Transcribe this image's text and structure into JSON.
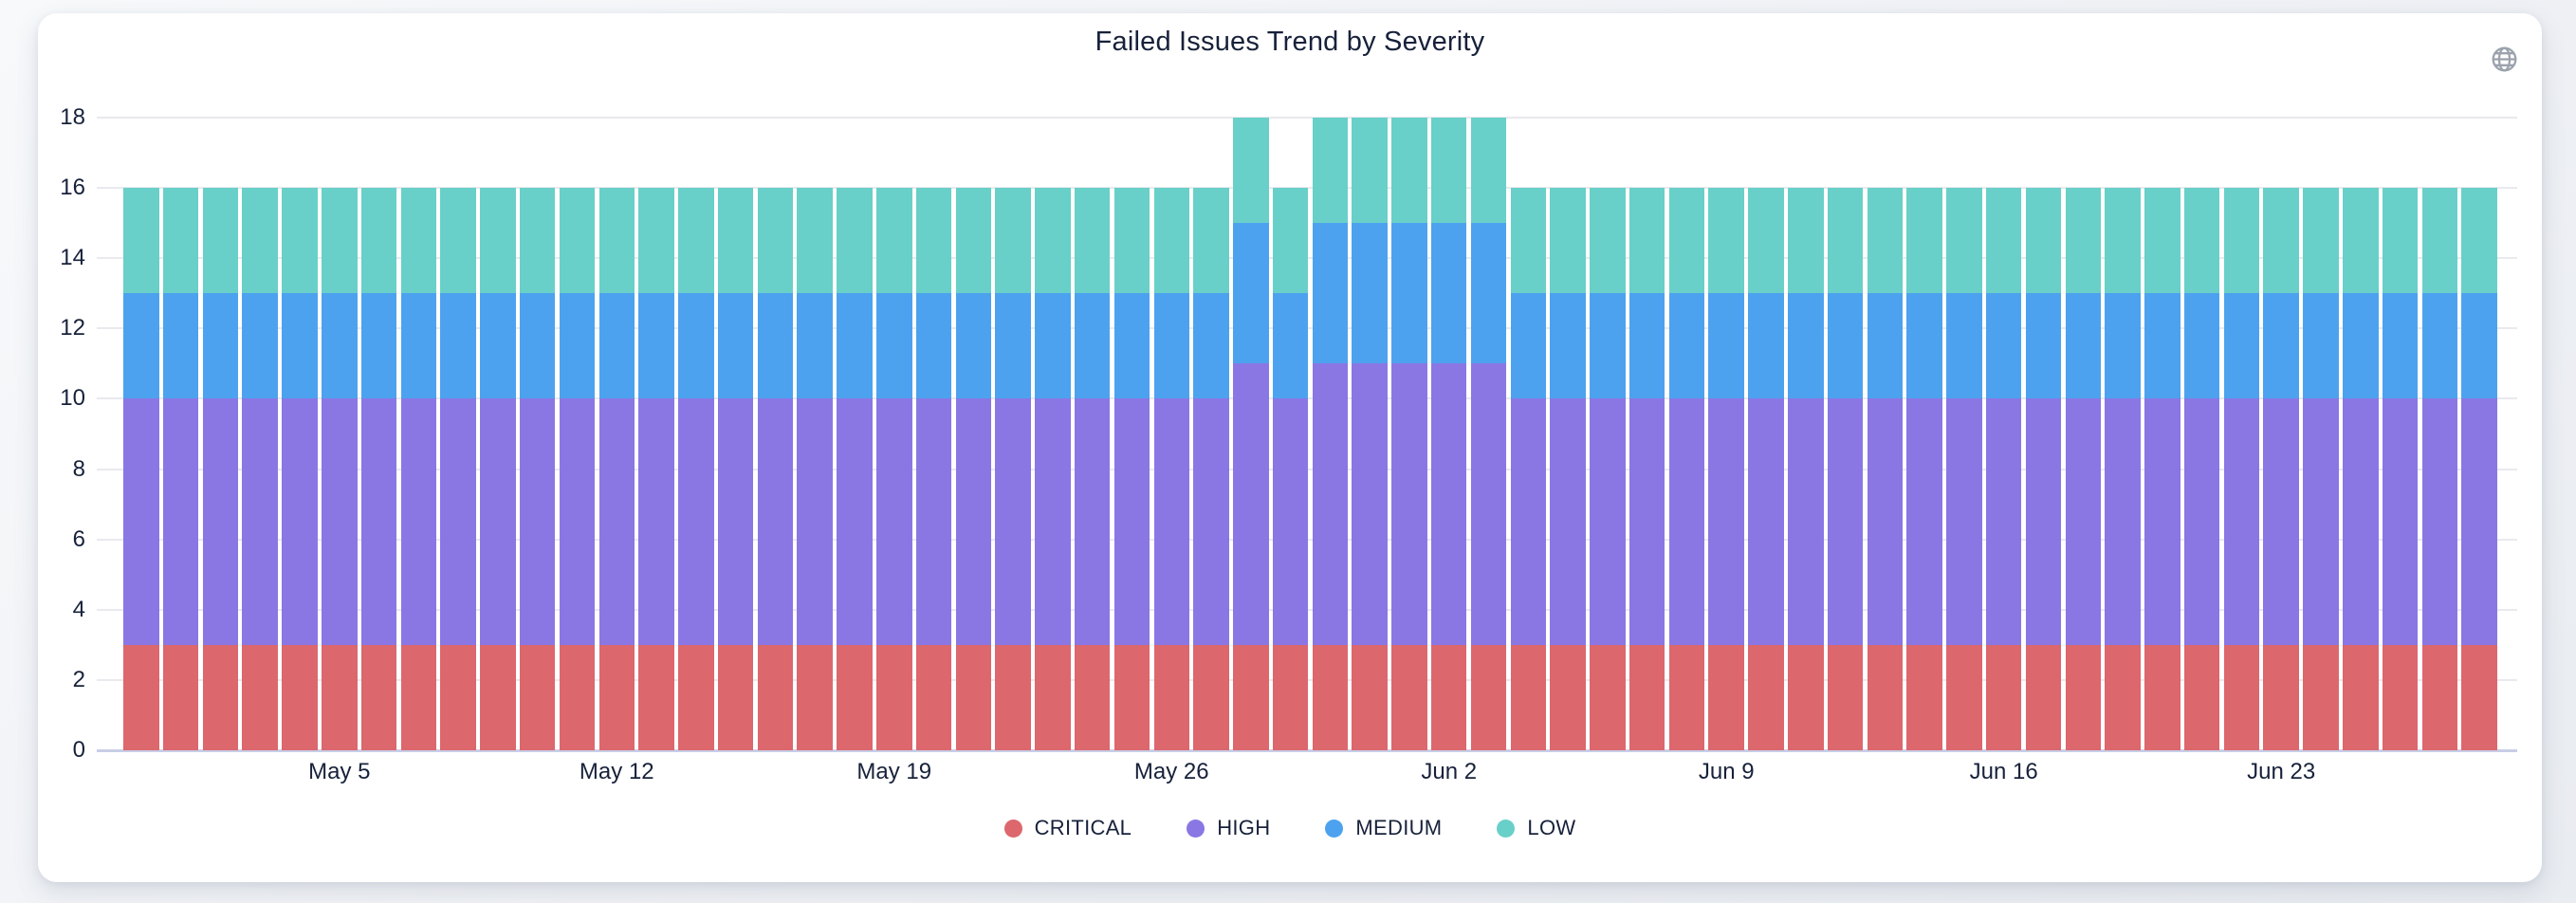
{
  "card": {
    "title": "Failed Issues Trend by Severity"
  },
  "header_controls": {
    "globe_icon": "globe"
  },
  "colors": {
    "page_background": "#eff1f5",
    "card_background": "#ffffff",
    "axis_text": "#17213a",
    "gridline": "#e9e9ee",
    "axis_zero_line": "#c9cee6",
    "globe_icon": "#9ba2ac",
    "critical": "#dc676d",
    "high": "#8a77e4",
    "medium": "#4da2ef",
    "low": "#68d0c8"
  },
  "chart_data": {
    "type": "bar",
    "stacked": true,
    "title": "Failed Issues Trend by Severity",
    "xlabel": "",
    "ylabel": "",
    "ylim": [
      0,
      18
    ],
    "y_ticks": [
      0,
      2,
      4,
      6,
      8,
      10,
      12,
      14,
      16,
      18
    ],
    "grid": "horizontal",
    "legend_position": "bottom",
    "x": [
      "Apr 30",
      "May 1",
      "May 2",
      "May 3",
      "May 4",
      "May 5",
      "May 6",
      "May 7",
      "May 8",
      "May 9",
      "May 10",
      "May 11",
      "May 12",
      "May 13",
      "May 14",
      "May 15",
      "May 16",
      "May 17",
      "May 18",
      "May 19",
      "May 20",
      "May 21",
      "May 22",
      "May 23",
      "May 24",
      "May 25",
      "May 26",
      "May 27",
      "May 28",
      "May 29",
      "May 30",
      "May 31",
      "Jun 1",
      "Jun 2",
      "Jun 3",
      "Jun 4",
      "Jun 5",
      "Jun 6",
      "Jun 7",
      "Jun 8",
      "Jun 9",
      "Jun 10",
      "Jun 11",
      "Jun 12",
      "Jun 13",
      "Jun 14",
      "Jun 15",
      "Jun 16",
      "Jun 17",
      "Jun 18",
      "Jun 19",
      "Jun 20",
      "Jun 21",
      "Jun 22",
      "Jun 23",
      "Jun 24",
      "Jun 25",
      "Jun 26",
      "Jun 27",
      "Jun 28"
    ],
    "x_tick_labels": [
      {
        "index": 5,
        "label": "May 5"
      },
      {
        "index": 12,
        "label": "May 12"
      },
      {
        "index": 19,
        "label": "May 19"
      },
      {
        "index": 26,
        "label": "May 26"
      },
      {
        "index": 33,
        "label": "Jun 2"
      },
      {
        "index": 40,
        "label": "Jun 9"
      },
      {
        "index": 47,
        "label": "Jun 16"
      },
      {
        "index": 54,
        "label": "Jun 23"
      }
    ],
    "series": [
      {
        "name": "CRITICAL",
        "color": "#dc676d",
        "values": [
          3,
          3,
          3,
          3,
          3,
          3,
          3,
          3,
          3,
          3,
          3,
          3,
          3,
          3,
          3,
          3,
          3,
          3,
          3,
          3,
          3,
          3,
          3,
          3,
          3,
          3,
          3,
          3,
          3,
          3,
          3,
          3,
          3,
          3,
          3,
          3,
          3,
          3,
          3,
          3,
          3,
          3,
          3,
          3,
          3,
          3,
          3,
          3,
          3,
          3,
          3,
          3,
          3,
          3,
          3,
          3,
          3,
          3,
          3,
          3
        ]
      },
      {
        "name": "HIGH",
        "color": "#8a77e4",
        "values": [
          7,
          7,
          7,
          7,
          7,
          7,
          7,
          7,
          7,
          7,
          7,
          7,
          7,
          7,
          7,
          7,
          7,
          7,
          7,
          7,
          7,
          7,
          7,
          7,
          7,
          7,
          7,
          7,
          8,
          7,
          8,
          8,
          8,
          8,
          8,
          7,
          7,
          7,
          7,
          7,
          7,
          7,
          7,
          7,
          7,
          7,
          7,
          7,
          7,
          7,
          7,
          7,
          7,
          7,
          7,
          7,
          7,
          7,
          7,
          7
        ]
      },
      {
        "name": "MEDIUM",
        "color": "#4da2ef",
        "values": [
          3,
          3,
          3,
          3,
          3,
          3,
          3,
          3,
          3,
          3,
          3,
          3,
          3,
          3,
          3,
          3,
          3,
          3,
          3,
          3,
          3,
          3,
          3,
          3,
          3,
          3,
          3,
          3,
          4,
          3,
          4,
          4,
          4,
          4,
          4,
          3,
          3,
          3,
          3,
          3,
          3,
          3,
          3,
          3,
          3,
          3,
          3,
          3,
          3,
          3,
          3,
          3,
          3,
          3,
          3,
          3,
          3,
          3,
          3,
          3
        ]
      },
      {
        "name": "LOW",
        "color": "#68d0c8",
        "values": [
          3,
          3,
          3,
          3,
          3,
          3,
          3,
          3,
          3,
          3,
          3,
          3,
          3,
          3,
          3,
          3,
          3,
          3,
          3,
          3,
          3,
          3,
          3,
          3,
          3,
          3,
          3,
          3,
          3,
          3,
          3,
          3,
          3,
          3,
          3,
          3,
          3,
          3,
          3,
          3,
          3,
          3,
          3,
          3,
          3,
          3,
          3,
          3,
          3,
          3,
          3,
          3,
          3,
          3,
          3,
          3,
          3,
          3,
          3,
          3
        ]
      }
    ]
  }
}
